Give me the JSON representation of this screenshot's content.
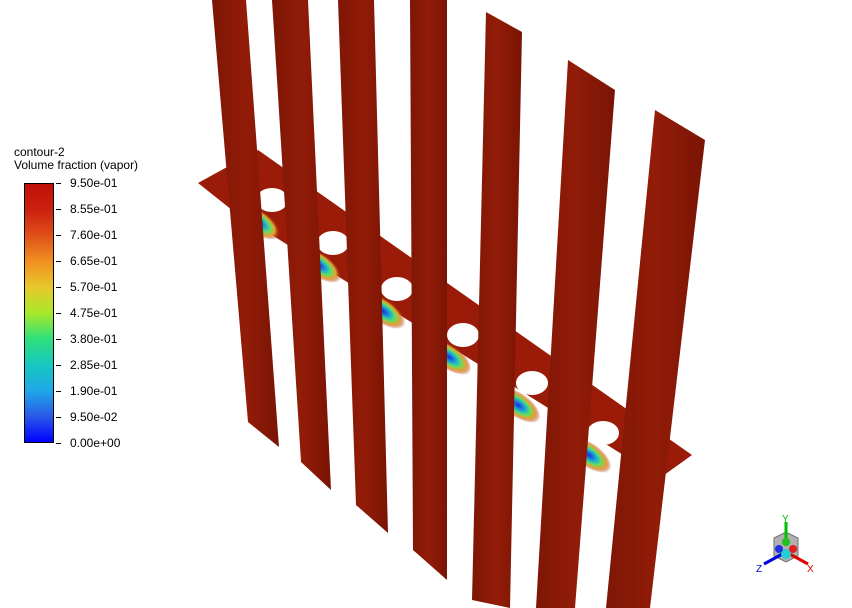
{
  "legend": {
    "name": "contour-2",
    "variable": "Volume fraction (vapor)",
    "ticks": [
      "9.50e-01",
      "8.55e-01",
      "7.60e-01",
      "6.65e-01",
      "5.70e-01",
      "4.75e-01",
      "3.80e-01",
      "2.85e-01",
      "1.90e-01",
      "9.50e-02",
      "0.00e+00"
    ],
    "colormap_colors": [
      "#0000ff",
      "#1fa8e8",
      "#2ee07a",
      "#a8e82a",
      "#f09020",
      "#c01008"
    ]
  },
  "scene": {
    "fin_color": "#8a1a08",
    "plate_color": "#9a1c08",
    "hole_count": 6,
    "fin_count": 7
  },
  "triad": {
    "x_label": "X",
    "y_label": "Y",
    "z_label": "Z",
    "x_color": "#e00000",
    "y_color": "#00c000",
    "z_color": "#0000e0"
  }
}
